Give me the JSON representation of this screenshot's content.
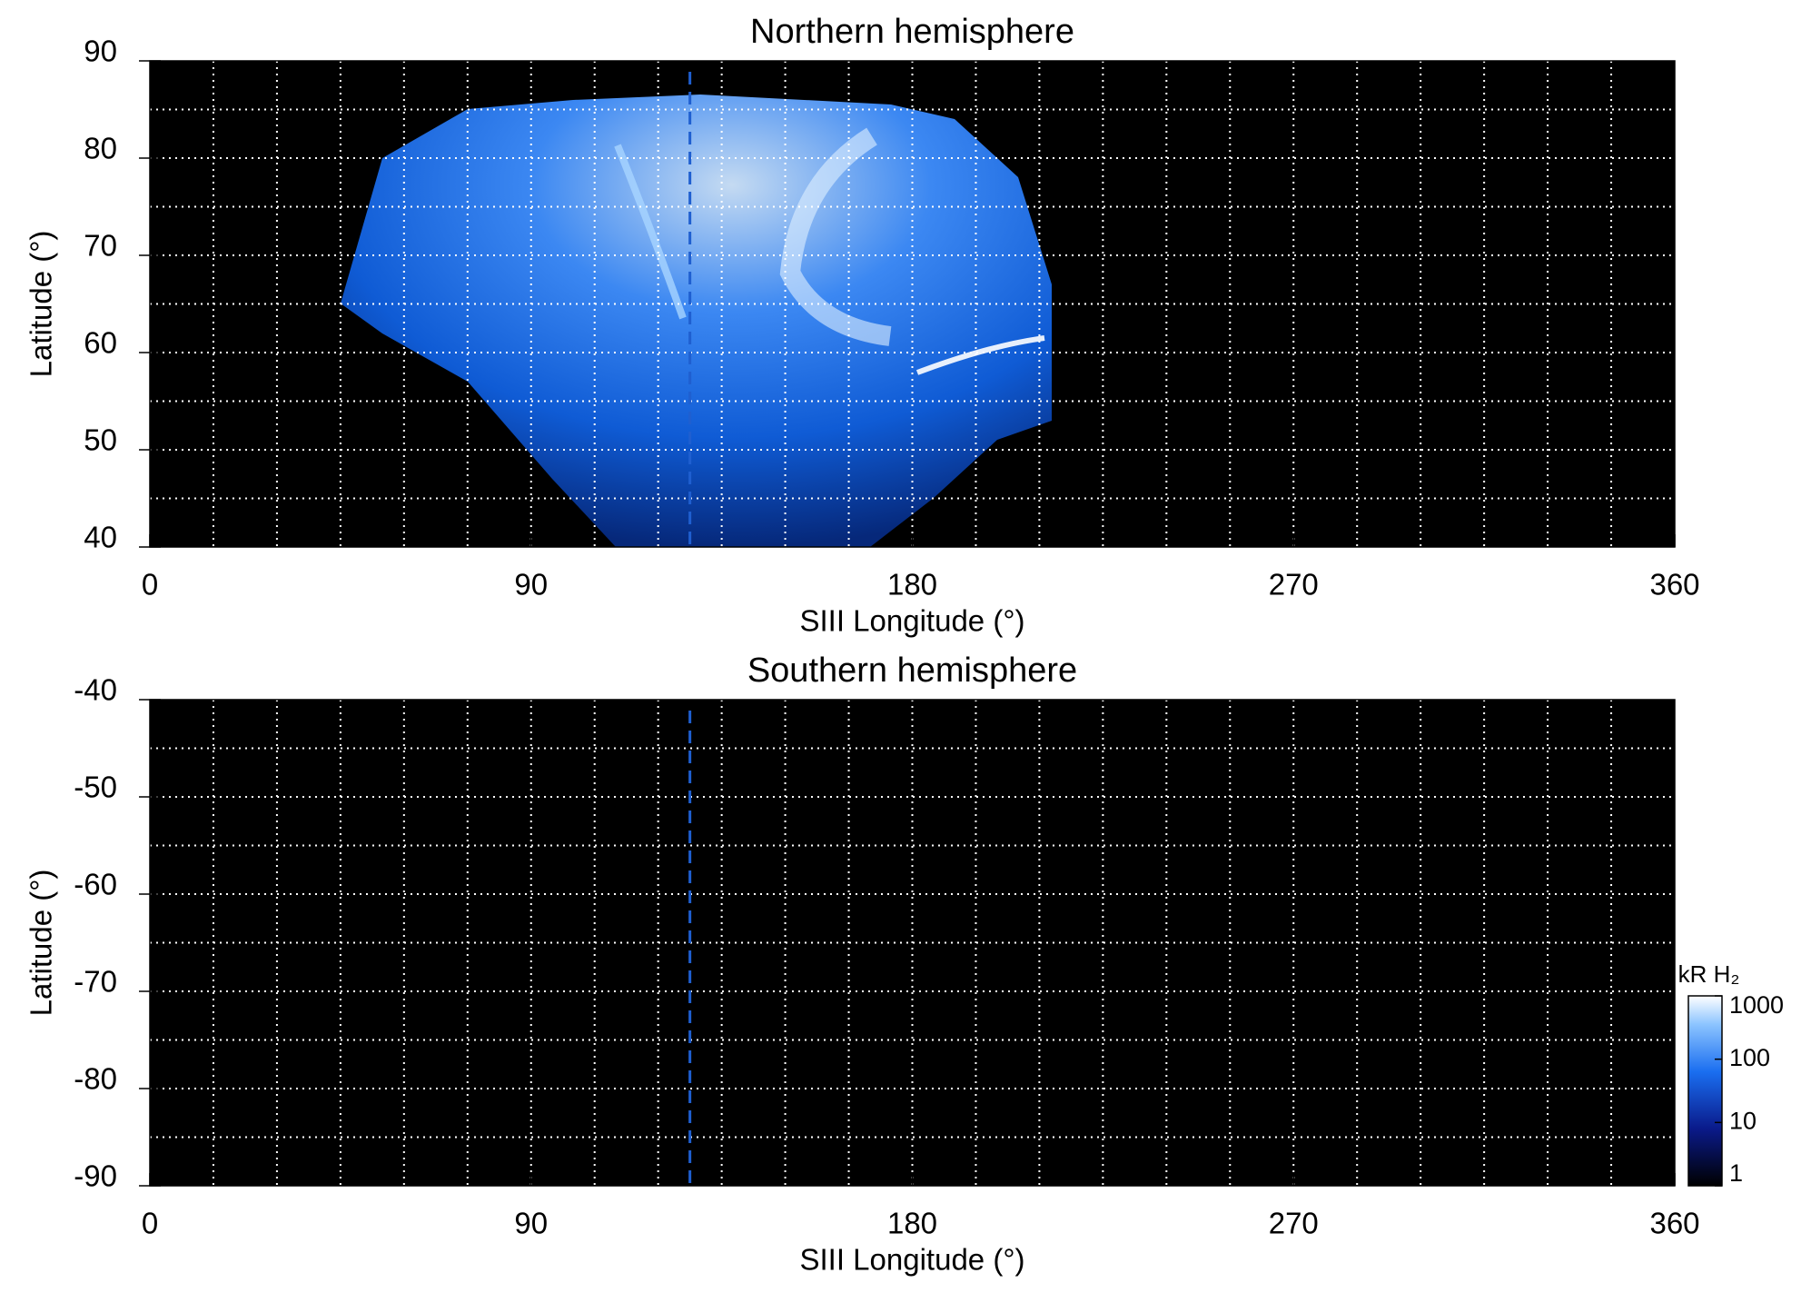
{
  "chart_data": [
    {
      "type": "heatmap",
      "title": "Northern hemisphere",
      "xlabel": "SIII Longitude (°)",
      "ylabel": "Latitude (°)",
      "xlim": [
        0,
        360
      ],
      "xticks": [
        0,
        90,
        180,
        270,
        360
      ],
      "ylim": [
        40,
        90
      ],
      "yticks": [
        40,
        50,
        60,
        70,
        80,
        90
      ],
      "xgrid": [
        15,
        30,
        45,
        60,
        75,
        90,
        105,
        120,
        135,
        150,
        165,
        180,
        195,
        210,
        225,
        240,
        255,
        270,
        285,
        300,
        315,
        330,
        345
      ],
      "ygrid": [
        45,
        50,
        55,
        60,
        65,
        70,
        75,
        80,
        85
      ],
      "vline": 127.5,
      "vline_color": "#1f5fd0"
    },
    {
      "type": "heatmap",
      "title": "Southern hemisphere",
      "xlabel": "SIII Longitude (°)",
      "ylabel": "Latitude (°)",
      "xlim": [
        0,
        360
      ],
      "xticks": [
        0,
        90,
        180,
        270,
        360
      ],
      "ylim": [
        -90,
        -40
      ],
      "yticks": [
        -90,
        -80,
        -70,
        -60,
        -50,
        -40
      ],
      "xgrid": [
        15,
        30,
        45,
        60,
        75,
        90,
        105,
        120,
        135,
        150,
        165,
        180,
        195,
        210,
        225,
        240,
        255,
        270,
        285,
        300,
        315,
        330,
        345
      ],
      "ygrid": [
        -85,
        -80,
        -75,
        -70,
        -65,
        -60,
        -55,
        -50,
        -45
      ],
      "vline": 127.5,
      "vline_color": "#1f5fd0",
      "colorbar": {
        "label": "kR H₂",
        "scale": "log",
        "lim": [
          1,
          1000
        ],
        "ticks": [
          1,
          10,
          100,
          1000
        ]
      }
    }
  ]
}
